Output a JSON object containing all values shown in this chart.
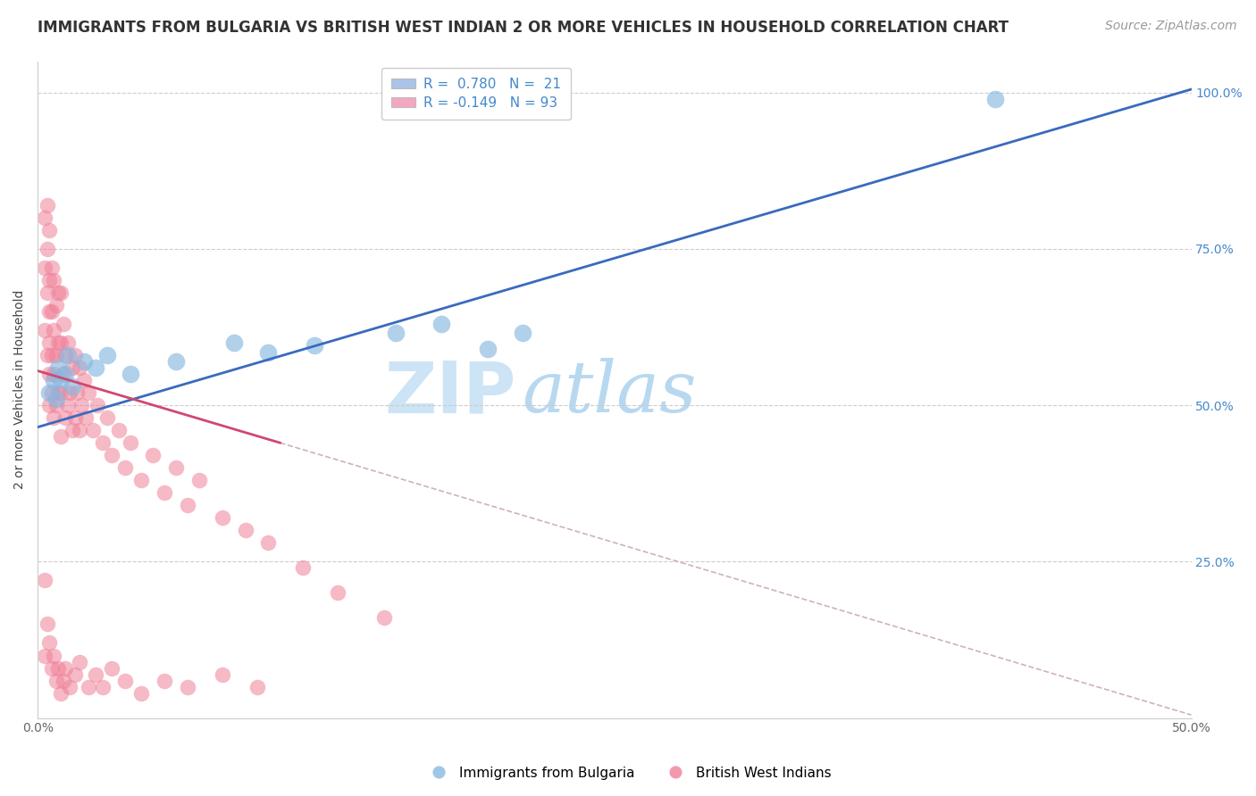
{
  "title": "IMMIGRANTS FROM BULGARIA VS BRITISH WEST INDIAN 2 OR MORE VEHICLES IN HOUSEHOLD CORRELATION CHART",
  "source": "Source: ZipAtlas.com",
  "ylabel": "2 or more Vehicles in Household",
  "xlim": [
    0.0,
    0.5
  ],
  "ylim": [
    0.0,
    1.05
  ],
  "xtick_positions": [
    0.0,
    0.1,
    0.2,
    0.3,
    0.4,
    0.5
  ],
  "xticklabels": [
    "0.0%",
    "",
    "",
    "",
    "",
    "50.0%"
  ],
  "ytick_positions": [
    0.25,
    0.5,
    0.75,
    1.0
  ],
  "yticklabels_right": [
    "25.0%",
    "50.0%",
    "75.0%",
    "100.0%"
  ],
  "legend_label1": "R =  0.780   N =  21",
  "legend_label2": "R = -0.149   N = 93",
  "legend_color1": "#aac4e8",
  "legend_color2": "#f4a8c0",
  "dot_color_blue": "#88b8e0",
  "dot_color_pink": "#f08098",
  "line_color_blue": "#3a6abf",
  "line_color_pink": "#d04870",
  "line_color_dashed": "#d0b0c0",
  "watermark_zip": "ZIP",
  "watermark_atlas": "atlas",
  "watermark_color": "#cce4f5",
  "title_fontsize": 12,
  "source_fontsize": 10,
  "axis_label_fontsize": 10,
  "tick_fontsize": 10,
  "legend_fontsize": 11,
  "bg_color": "#ffffff",
  "blue_x": [
    0.005,
    0.007,
    0.008,
    0.009,
    0.01,
    0.012,
    0.013,
    0.015,
    0.02,
    0.025,
    0.03,
    0.04,
    0.06,
    0.085,
    0.1,
    0.12,
    0.155,
    0.175,
    0.195,
    0.21,
    0.415
  ],
  "blue_y": [
    0.52,
    0.54,
    0.51,
    0.56,
    0.54,
    0.55,
    0.58,
    0.53,
    0.57,
    0.56,
    0.58,
    0.55,
    0.57,
    0.6,
    0.585,
    0.595,
    0.615,
    0.63,
    0.59,
    0.615,
    0.99
  ],
  "blue_line_x0": 0.0,
  "blue_line_y0": 0.465,
  "blue_line_x1": 0.5,
  "blue_line_y1": 1.005,
  "pink_line_solid_x0": 0.0,
  "pink_line_solid_y0": 0.555,
  "pink_line_solid_x1": 0.105,
  "pink_line_solid_y1": 0.44,
  "pink_line_dash_x0": 0.105,
  "pink_line_dash_y0": 0.44,
  "pink_line_dash_x1": 0.5,
  "pink_line_dash_y1": 0.005,
  "pink_x_cluster": [
    0.003,
    0.003,
    0.003,
    0.004,
    0.004,
    0.004,
    0.004,
    0.005,
    0.005,
    0.005,
    0.005,
    0.005,
    0.005,
    0.006,
    0.006,
    0.006,
    0.006,
    0.007,
    0.007,
    0.007,
    0.007,
    0.008,
    0.008,
    0.008,
    0.009,
    0.009,
    0.009,
    0.01,
    0.01,
    0.01,
    0.01,
    0.011,
    0.011,
    0.012,
    0.012,
    0.013,
    0.013,
    0.014,
    0.015,
    0.015,
    0.016,
    0.016,
    0.017,
    0.018,
    0.018,
    0.019,
    0.02,
    0.021,
    0.022,
    0.024,
    0.026,
    0.028,
    0.03,
    0.032,
    0.035,
    0.038,
    0.04,
    0.045,
    0.05,
    0.055,
    0.06,
    0.065,
    0.07,
    0.08,
    0.09,
    0.1,
    0.115,
    0.13,
    0.15,
    0.003,
    0.003,
    0.004,
    0.005,
    0.006,
    0.007,
    0.008,
    0.009,
    0.01,
    0.011,
    0.012,
    0.014,
    0.016,
    0.018,
    0.022,
    0.025,
    0.028,
    0.032,
    0.038,
    0.045,
    0.055,
    0.065,
    0.08,
    0.095
  ],
  "pink_y_cluster": [
    0.62,
    0.72,
    0.8,
    0.58,
    0.68,
    0.75,
    0.82,
    0.5,
    0.55,
    0.6,
    0.65,
    0.7,
    0.78,
    0.52,
    0.58,
    0.65,
    0.72,
    0.48,
    0.55,
    0.62,
    0.7,
    0.5,
    0.58,
    0.66,
    0.52,
    0.6,
    0.68,
    0.45,
    0.52,
    0.6,
    0.68,
    0.55,
    0.63,
    0.48,
    0.58,
    0.5,
    0.6,
    0.52,
    0.46,
    0.56,
    0.48,
    0.58,
    0.52,
    0.46,
    0.56,
    0.5,
    0.54,
    0.48,
    0.52,
    0.46,
    0.5,
    0.44,
    0.48,
    0.42,
    0.46,
    0.4,
    0.44,
    0.38,
    0.42,
    0.36,
    0.4,
    0.34,
    0.38,
    0.32,
    0.3,
    0.28,
    0.24,
    0.2,
    0.16,
    0.1,
    0.22,
    0.15,
    0.12,
    0.08,
    0.1,
    0.06,
    0.08,
    0.04,
    0.06,
    0.08,
    0.05,
    0.07,
    0.09,
    0.05,
    0.07,
    0.05,
    0.08,
    0.06,
    0.04,
    0.06,
    0.05,
    0.07,
    0.05
  ]
}
